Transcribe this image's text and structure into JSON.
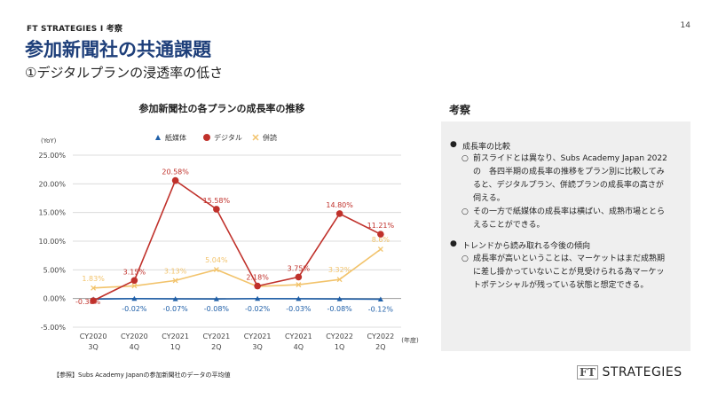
{
  "header": {
    "breadcrumb": "FT STRATEGIES Ⅰ 考察",
    "page_number": "14",
    "title": "参加新聞社の共通課題",
    "subtitle": "①デジタルプランの浸透率の低さ"
  },
  "colors": {
    "title": "#1e3f7a",
    "paper": "#1f5fa8",
    "digital": "#c0312b",
    "bundle": "#f2c36b",
    "panel_bg": "#efefef"
  },
  "chart_data": {
    "type": "line",
    "title": "参加新聞社の各プランの成長率の推移",
    "ylabel": "(YoY)",
    "xlabel": "(年度)",
    "ylim": [
      -5,
      25
    ],
    "yticks": [
      "-5.00%",
      "0.00%",
      "5.00%",
      "10.00%",
      "15.00%",
      "20.00%",
      "25.00%"
    ],
    "categories": [
      [
        "CY2020",
        "3Q"
      ],
      [
        "CY2020",
        "4Q"
      ],
      [
        "CY2021",
        "1Q"
      ],
      [
        "CY2021",
        "2Q"
      ],
      [
        "CY2021",
        "3Q"
      ],
      [
        "CY2021",
        "4Q"
      ],
      [
        "CY2022",
        "1Q"
      ],
      [
        "CY2022",
        "2Q"
      ]
    ],
    "legend_position": "top",
    "grid": true,
    "series": [
      {
        "name": "紙媒体",
        "marker": "triangle",
        "values": [
          -0.1,
          -0.02,
          -0.07,
          -0.08,
          -0.02,
          -0.03,
          -0.08,
          -0.12
        ],
        "labels": [
          "",
          "-0.02%",
          "-0.07%",
          "-0.08%",
          "-0.02%",
          "-0.03%",
          "-0.08%",
          "-0.12%"
        ]
      },
      {
        "name": "デジタル",
        "marker": "circle",
        "values": [
          -0.38,
          3.15,
          20.58,
          15.58,
          2.18,
          3.75,
          14.8,
          11.21
        ],
        "labels": [
          "-0.38%",
          "3.15%",
          "20.58%",
          "15.58%",
          "2.18%",
          "3.75%",
          "14.80%",
          "11.21%"
        ]
      },
      {
        "name": "併読",
        "marker": "x",
        "values": [
          1.83,
          2.2,
          3.13,
          5.04,
          2.1,
          2.4,
          3.32,
          8.6
        ],
        "labels": [
          "1.83%",
          "",
          "3.13%",
          "5.04%",
          "",
          "",
          "3.32%",
          "8.6%"
        ]
      }
    ]
  },
  "panel": {
    "title": "考察",
    "sections": [
      {
        "heading": "成長率の比較",
        "items": [
          "前スライドとは異なり、Subs Academy Japan 2022の　各四半期の成長率の推移をプラン別に比較してみると、デジタルプラン、併読プランの成長率の高さが伺える。",
          "その一方で紙媒体の成長率は横ばい、成熟市場ととらえることができる。"
        ]
      },
      {
        "heading": "トレンドから読み取れる今後の傾向",
        "items": [
          "成長率が高いということは、マーケットはまだ成熟期に差し掛かっていないことが見受けられる為マーケットポテンシャルが残っている状態と想定できる。"
        ]
      }
    ]
  },
  "footnote": "【参照】Subs Academy Japanの参加新聞社のデータの平均値",
  "logo": {
    "mark": "FT",
    "text": "STRATEGIES"
  }
}
